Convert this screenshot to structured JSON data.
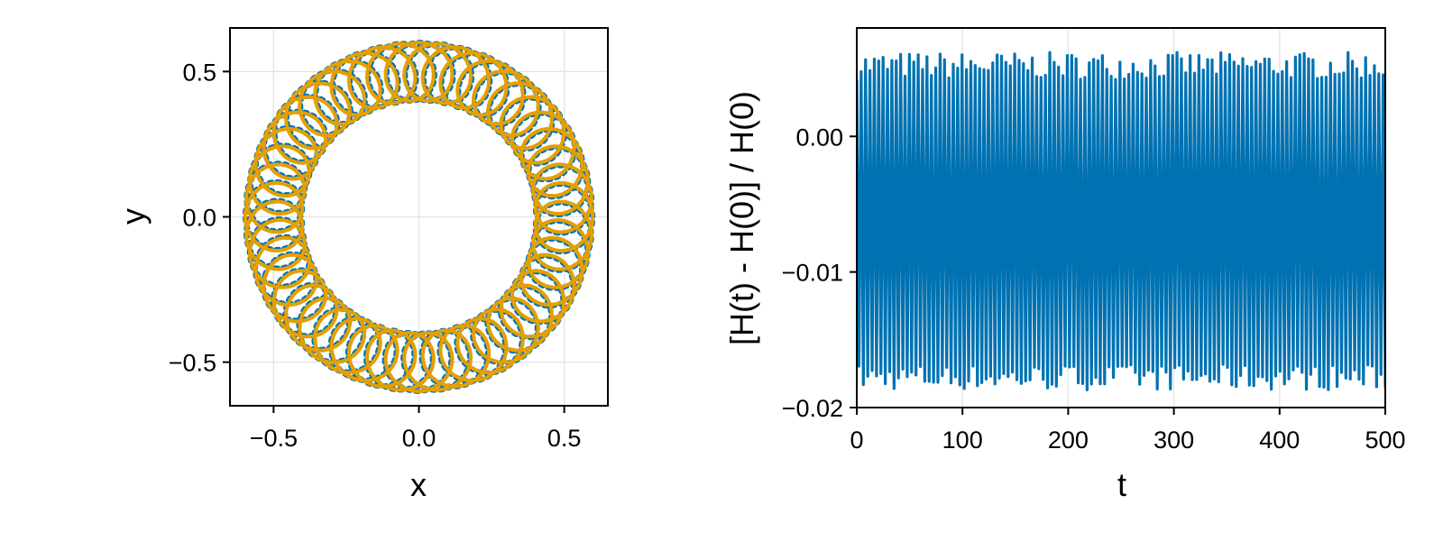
{
  "chart_data": [
    {
      "type": "line",
      "xlabel": "x",
      "ylabel": "y",
      "xlim": [
        -0.65,
        0.65
      ],
      "ylim": [
        -0.65,
        0.65
      ],
      "xticks": [
        -0.5,
        0.0,
        0.5
      ],
      "yticks": [
        -0.5,
        0.0,
        0.5
      ],
      "xticklabels": [
        "−0.5",
        "0.0",
        "0.5"
      ],
      "yticklabels": [
        "−0.5",
        "0.0",
        "0.5"
      ],
      "grid": true,
      "legend": "none",
      "series": [
        {
          "color": "#0072b2",
          "style": "dotted",
          "trajectory": {
            "kind": "epicyclic orbit",
            "inner_radius": 0.4,
            "outer_radius": 0.6,
            "loops": 48
          }
        },
        {
          "color": "#e69f00",
          "style": "solid",
          "trajectory": {
            "kind": "epicyclic orbit",
            "inner_radius": 0.4,
            "outer_radius": 0.6,
            "loops": 48
          }
        }
      ]
    },
    {
      "type": "line",
      "xlabel": "t",
      "ylabel": "[H(t) - H(0)] / H(0)",
      "xlim": [
        0,
        500
      ],
      "ylim": [
        -0.02,
        0.008
      ],
      "xticks": [
        0,
        100,
        200,
        300,
        400,
        500
      ],
      "yticks": [
        -0.02,
        -0.01,
        0.0
      ],
      "xticklabels": [
        "0",
        "100",
        "200",
        "300",
        "400",
        "500"
      ],
      "yticklabels": [
        "−0.02",
        "−0.01",
        "0.00"
      ],
      "grid": true,
      "legend": "none",
      "series": [
        {
          "color": "#0072b2",
          "oscillation": {
            "period": 4.15,
            "max_range": [
              0.0042,
              0.0062
            ],
            "min_range": [
              -0.0187,
              -0.0168
            ]
          }
        }
      ]
    }
  ]
}
